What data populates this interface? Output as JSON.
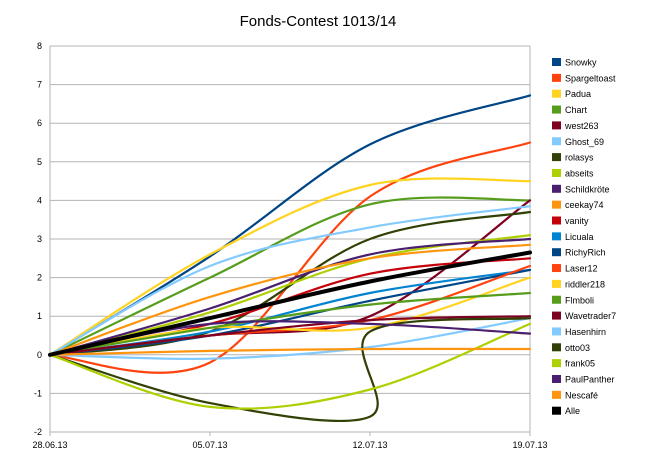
{
  "chart_data": {
    "type": "line",
    "title": "Fonds-Contest 1013/14",
    "xlabel": "",
    "ylabel": "",
    "x_ticks": [
      "28.06.13",
      "05.07.13",
      "12.07.13",
      "19.07.13"
    ],
    "x_range": [
      "28.06.13",
      "19.07.13"
    ],
    "ylim": [
      -2,
      8
    ],
    "y_ticks": [
      -2,
      -1,
      0,
      1,
      2,
      3,
      4,
      5,
      6,
      7,
      8
    ],
    "grid": "horizontal",
    "legend_position": "right",
    "series": [
      {
        "name": "Snowky",
        "color": "#004586",
        "points": [
          [
            "28.06.13",
            0
          ],
          [
            "05.07.13",
            2.55
          ],
          [
            "12.07.13",
            5.45
          ],
          [
            "19.07.13",
            6.72
          ]
        ]
      },
      {
        "name": "Spargeltoast",
        "color": "#ff420e",
        "points": [
          [
            "28.06.13",
            0
          ],
          [
            "05.07.13",
            -0.2
          ],
          [
            "12.07.13",
            4.1
          ],
          [
            "19.07.13",
            5.5
          ]
        ]
      },
      {
        "name": "Padua",
        "color": "#ffd320",
        "points": [
          [
            "28.06.13",
            0
          ],
          [
            "05.07.13",
            2.6
          ],
          [
            "12.07.13",
            4.4
          ],
          [
            "19.07.13",
            4.5
          ]
        ]
      },
      {
        "name": "Chart",
        "color": "#579d1c",
        "points": [
          [
            "28.06.13",
            0
          ],
          [
            "05.07.13",
            2.0
          ],
          [
            "12.07.13",
            3.9
          ],
          [
            "19.07.13",
            4.0
          ]
        ]
      },
      {
        "name": "west263",
        "color": "#7e0021",
        "points": [
          [
            "28.06.13",
            0
          ],
          [
            "05.07.13",
            0.5
          ],
          [
            "12.07.13",
            1.0
          ],
          [
            "19.07.13",
            4.0
          ]
        ]
      },
      {
        "name": "Ghost_69",
        "color": "#83caff",
        "points": [
          [
            "28.06.13",
            0
          ],
          [
            "05.07.13",
            2.3
          ],
          [
            "12.07.13",
            3.3
          ],
          [
            "19.07.13",
            3.85
          ]
        ]
      },
      {
        "name": "rolasys",
        "color": "#314004",
        "points": [
          [
            "28.06.13",
            0
          ],
          [
            "05.07.13",
            0.6
          ],
          [
            "12.07.13",
            3.0
          ],
          [
            "19.07.13",
            3.7
          ]
        ]
      },
      {
        "name": "abseits",
        "color": "#aecf00",
        "points": [
          [
            "28.06.13",
            0
          ],
          [
            "05.07.13",
            1.1
          ],
          [
            "12.07.13",
            2.5
          ],
          [
            "19.07.13",
            3.1
          ]
        ]
      },
      {
        "name": "Schildkröte",
        "color": "#4b1f6f",
        "points": [
          [
            "28.06.13",
            0
          ],
          [
            "05.07.13",
            1.2
          ],
          [
            "12.07.13",
            2.6
          ],
          [
            "19.07.13",
            3.0
          ]
        ]
      },
      {
        "name": "ceekay74",
        "color": "#ff950e",
        "points": [
          [
            "28.06.13",
            0
          ],
          [
            "05.07.13",
            1.5
          ],
          [
            "12.07.13",
            2.5
          ],
          [
            "19.07.13",
            2.85
          ]
        ]
      },
      {
        "name": "vanity",
        "color": "#c5000b",
        "points": [
          [
            "28.06.13",
            0
          ],
          [
            "05.07.13",
            0.8
          ],
          [
            "12.07.13",
            2.1
          ],
          [
            "19.07.13",
            2.5
          ]
        ]
      },
      {
        "name": "Licuala",
        "color": "#0084d1",
        "points": [
          [
            "28.06.13",
            0
          ],
          [
            "05.07.13",
            0.6
          ],
          [
            "12.07.13",
            1.6
          ],
          [
            "19.07.13",
            2.2
          ]
        ]
      },
      {
        "name": "RichyRich",
        "color": "#004586",
        "points": [
          [
            "28.06.13",
            0
          ],
          [
            "05.07.13",
            0.5
          ],
          [
            "12.07.13",
            1.4
          ],
          [
            "19.07.13",
            2.2
          ]
        ]
      },
      {
        "name": "Laser12",
        "color": "#ff420e",
        "points": [
          [
            "28.06.13",
            0
          ],
          [
            "05.07.13",
            0.5
          ],
          [
            "12.07.13",
            0.9
          ],
          [
            "19.07.13",
            2.3
          ]
        ]
      },
      {
        "name": "riddler218",
        "color": "#ffd320",
        "points": [
          [
            "28.06.13",
            0
          ],
          [
            "05.07.13",
            0.7
          ],
          [
            "12.07.13",
            0.7
          ],
          [
            "19.07.13",
            2.0
          ]
        ]
      },
      {
        "name": "Flmboli",
        "color": "#579d1c",
        "points": [
          [
            "28.06.13",
            0
          ],
          [
            "05.07.13",
            0.7
          ],
          [
            "12.07.13",
            1.3
          ],
          [
            "19.07.13",
            1.6
          ]
        ]
      },
      {
        "name": "Wavetrader7",
        "color": "#7e0021",
        "points": [
          [
            "28.06.13",
            0
          ],
          [
            "05.07.13",
            0.5
          ],
          [
            "12.07.13",
            0.9
          ],
          [
            "19.07.13",
            1.0
          ]
        ]
      },
      {
        "name": "Hasenhirn",
        "color": "#83caff",
        "points": [
          [
            "28.06.13",
            0
          ],
          [
            "05.07.13",
            -0.1
          ],
          [
            "12.07.13",
            0.2
          ],
          [
            "19.07.13",
            0.95
          ]
        ]
      },
      {
        "name": "otto03",
        "color": "#314004",
        "points": [
          [
            "28.06.13",
            0
          ],
          [
            "05.07.13",
            -1.25
          ],
          [
            "12.07.13",
            -1.6
          ],
          [
            "12.07.13",
            0.6
          ],
          [
            "19.07.13",
            0.95
          ]
        ]
      },
      {
        "name": "frank05",
        "color": "#aecf00",
        "points": [
          [
            "28.06.13",
            0
          ],
          [
            "05.07.13",
            -1.35
          ],
          [
            "12.07.13",
            -0.9
          ],
          [
            "19.07.13",
            0.8
          ]
        ]
      },
      {
        "name": "PaulPanther",
        "color": "#4b1f6f",
        "points": [
          [
            "28.06.13",
            0
          ],
          [
            "05.07.13",
            0.8
          ],
          [
            "12.07.13",
            0.8
          ],
          [
            "19.07.13",
            0.55
          ]
        ]
      },
      {
        "name": "Nescafé",
        "color": "#ff950e",
        "points": [
          [
            "28.06.13",
            0
          ],
          [
            "05.07.13",
            0.1
          ],
          [
            "12.07.13",
            0.15
          ],
          [
            "19.07.13",
            0.15
          ]
        ]
      },
      {
        "name": "Alle",
        "color": "#000000",
        "points": [
          [
            "28.06.13",
            0
          ],
          [
            "05.07.13",
            0.95
          ],
          [
            "12.07.13",
            1.9
          ],
          [
            "19.07.13",
            2.65
          ]
        ]
      }
    ]
  }
}
